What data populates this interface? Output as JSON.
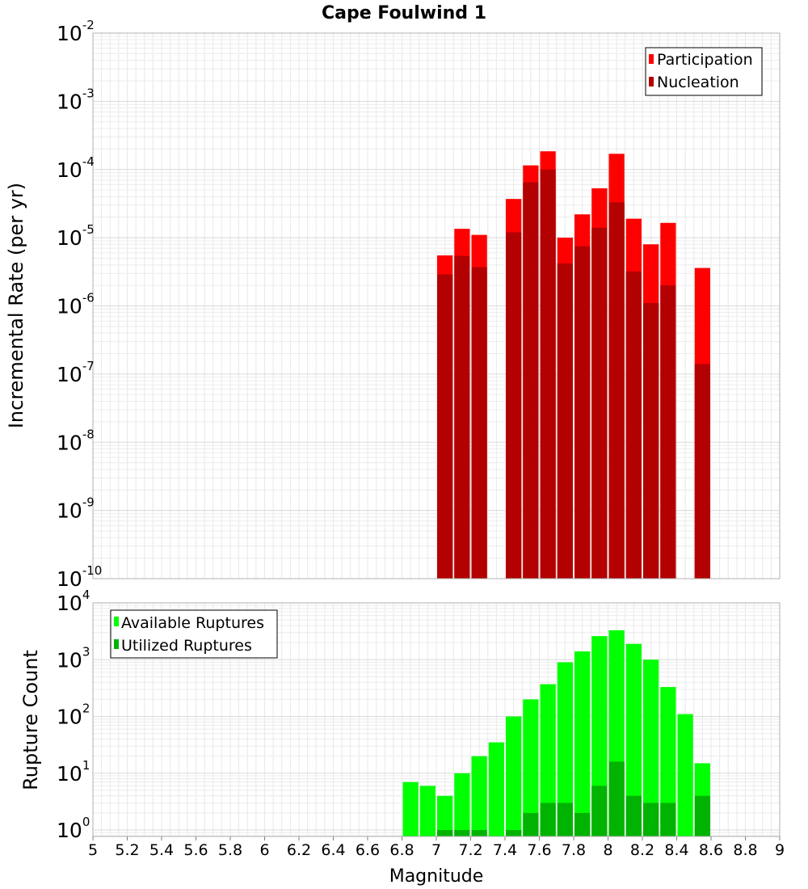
{
  "chart_data": [
    {
      "type": "bar",
      "title": "Cape Foulwind 1",
      "xlabel": "",
      "ylabel": "Incremental Rate (per yr)",
      "yscale": "log",
      "ylim": [
        1e-10,
        0.01
      ],
      "xlim": [
        5,
        9
      ],
      "bar_width": 0.1,
      "grid": true,
      "legend_position": "top-right",
      "y_ticks": [
        {
          "base": "10",
          "exp": "-10"
        },
        {
          "base": "10",
          "exp": "-9"
        },
        {
          "base": "10",
          "exp": "-8"
        },
        {
          "base": "10",
          "exp": "-7"
        },
        {
          "base": "10",
          "exp": "-6"
        },
        {
          "base": "10",
          "exp": "-5"
        },
        {
          "base": "10",
          "exp": "-4"
        },
        {
          "base": "10",
          "exp": "-3"
        },
        {
          "base": "10",
          "exp": "-2"
        }
      ],
      "x": [
        7.05,
        7.15,
        7.25,
        7.35,
        7.45,
        7.55,
        7.65,
        7.75,
        7.85,
        7.95,
        8.05,
        8.15,
        8.25,
        8.35,
        8.45,
        8.55
      ],
      "series": [
        {
          "name": "Participation",
          "color": "#ff0000",
          "values": [
            5.5e-06,
            1.35e-05,
            1.1e-05,
            0,
            3.7e-05,
            0.000115,
            0.000185,
            1e-05,
            2.2e-05,
            5.3e-05,
            0.00017,
            1.9e-05,
            8e-06,
            1.65e-05,
            0,
            3.6e-06
          ]
        },
        {
          "name": "Nucleation",
          "color": "#b30000",
          "values": [
            2.9e-06,
            5.4e-06,
            3.7e-06,
            0,
            1.2e-05,
            6.5e-05,
            0.0001,
            4.2e-06,
            7.5e-06,
            1.4e-05,
            3.3e-05,
            3.2e-06,
            1.1e-06,
            2e-06,
            0,
            1.4e-07
          ]
        }
      ]
    },
    {
      "type": "bar",
      "title": "",
      "xlabel": "Magnitude",
      "ylabel": "Rupture Count",
      "yscale": "log",
      "ylim": [
        0.77,
        10000
      ],
      "xlim": [
        5,
        9
      ],
      "bar_width": 0.1,
      "grid": true,
      "legend_position": "top-left",
      "y_ticks": [
        {
          "base": "10",
          "exp": "0"
        },
        {
          "base": "10",
          "exp": "1"
        },
        {
          "base": "10",
          "exp": "2"
        },
        {
          "base": "10",
          "exp": "3"
        },
        {
          "base": "10",
          "exp": "4"
        }
      ],
      "x_ticks": [
        "5",
        "5.2",
        "5.4",
        "5.6",
        "5.8",
        "6",
        "6.2",
        "6.4",
        "6.6",
        "6.8",
        "7",
        "7.2",
        "7.4",
        "7.6",
        "7.8",
        "8",
        "8.2",
        "8.4",
        "8.6",
        "8.8",
        "9"
      ],
      "x": [
        6.85,
        6.95,
        7.05,
        7.15,
        7.25,
        7.35,
        7.45,
        7.55,
        7.65,
        7.75,
        7.85,
        7.95,
        8.05,
        8.15,
        8.25,
        8.35,
        8.45,
        8.55
      ],
      "series": [
        {
          "name": "Available Ruptures",
          "color": "#00ff00",
          "values": [
            7,
            6,
            4,
            10,
            20,
            35,
            100,
            200,
            370,
            900,
            1400,
            2600,
            3300,
            1900,
            1000,
            330,
            110,
            15
          ]
        },
        {
          "name": "Utilized Ruptures",
          "color": "#00b300",
          "values": [
            0,
            0,
            1,
            1,
            1,
            0,
            1,
            2,
            3,
            3,
            2,
            6,
            16,
            4,
            3,
            3,
            0,
            4
          ]
        }
      ]
    }
  ]
}
